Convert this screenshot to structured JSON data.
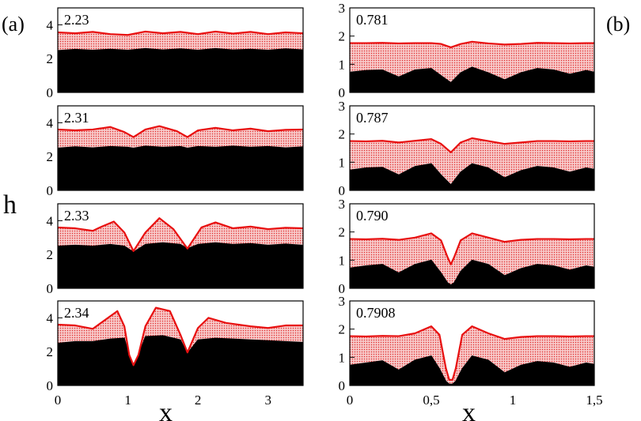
{
  "figure": {
    "panel_a_tag": "(a)",
    "panel_b_tag": "(b)",
    "ylabel": "h",
    "xlabel_a": "x",
    "xlabel_b": "x"
  },
  "colors": {
    "substrate": "#000000",
    "film_fill": "#f4b8b8",
    "film_edge": "#e81010",
    "frame": "#000000"
  },
  "chart_data": [
    {
      "type": "area",
      "column": "a",
      "param_label": "2.23",
      "xlim": [
        0,
        3.5
      ],
      "ylim": [
        0,
        5
      ],
      "yticks": [
        "0",
        "2",
        "4"
      ],
      "xticks": [],
      "substrate": {
        "x": [
          0,
          0.25,
          0.5,
          0.75,
          1.0,
          1.25,
          1.5,
          1.75,
          2.0,
          2.25,
          2.5,
          2.75,
          3.0,
          3.25,
          3.5
        ],
        "y": [
          2.48,
          2.55,
          2.5,
          2.56,
          2.5,
          2.6,
          2.52,
          2.58,
          2.5,
          2.6,
          2.52,
          2.56,
          2.5,
          2.58,
          2.52
        ]
      },
      "surface": {
        "x": [
          0,
          0.25,
          0.5,
          0.75,
          1.0,
          1.25,
          1.5,
          1.75,
          2.0,
          2.25,
          2.5,
          2.75,
          3.0,
          3.25,
          3.5
        ],
        "y": [
          3.55,
          3.5,
          3.58,
          3.45,
          3.4,
          3.6,
          3.5,
          3.58,
          3.45,
          3.6,
          3.48,
          3.58,
          3.45,
          3.55,
          3.5
        ]
      }
    },
    {
      "type": "area",
      "column": "a",
      "param_label": "2.31",
      "xlim": [
        0,
        3.5
      ],
      "ylim": [
        0,
        5
      ],
      "yticks": [
        "0",
        "2",
        "4"
      ],
      "xticks": [],
      "substrate": {
        "x": [
          0,
          0.25,
          0.5,
          0.75,
          1.0,
          1.08,
          1.25,
          1.5,
          1.75,
          1.85,
          2.0,
          2.25,
          2.5,
          2.75,
          3.0,
          3.25,
          3.5
        ],
        "y": [
          2.5,
          2.58,
          2.52,
          2.6,
          2.55,
          2.5,
          2.62,
          2.55,
          2.6,
          2.5,
          2.6,
          2.55,
          2.62,
          2.55,
          2.6,
          2.52,
          2.58
        ]
      },
      "surface": {
        "x": [
          0,
          0.25,
          0.5,
          0.75,
          0.95,
          1.08,
          1.25,
          1.45,
          1.7,
          1.85,
          2.0,
          2.25,
          2.5,
          2.75,
          3.0,
          3.25,
          3.5
        ],
        "y": [
          3.6,
          3.55,
          3.6,
          3.75,
          3.45,
          3.15,
          3.6,
          3.8,
          3.5,
          3.15,
          3.55,
          3.7,
          3.55,
          3.65,
          3.5,
          3.58,
          3.6
        ]
      }
    },
    {
      "type": "area",
      "column": "a",
      "param_label": "2.33",
      "xlim": [
        0,
        3.5
      ],
      "ylim": [
        0,
        5
      ],
      "yticks": [
        "0",
        "2",
        "4"
      ],
      "xticks": [],
      "substrate": {
        "x": [
          0,
          0.25,
          0.5,
          0.75,
          0.95,
          1.08,
          1.25,
          1.5,
          1.75,
          1.85,
          2.0,
          2.25,
          2.5,
          2.75,
          3.0,
          3.25,
          3.5
        ],
        "y": [
          2.5,
          2.55,
          2.5,
          2.6,
          2.5,
          2.15,
          2.6,
          2.7,
          2.6,
          2.35,
          2.6,
          2.7,
          2.6,
          2.65,
          2.55,
          2.62,
          2.55
        ]
      },
      "surface": {
        "x": [
          0,
          0.25,
          0.5,
          0.6,
          0.8,
          0.95,
          1.08,
          1.25,
          1.45,
          1.65,
          1.85,
          2.05,
          2.25,
          2.5,
          2.75,
          3.0,
          3.25,
          3.5
        ],
        "y": [
          3.6,
          3.55,
          3.4,
          3.6,
          3.95,
          3.3,
          2.2,
          3.3,
          4.15,
          3.5,
          2.35,
          3.6,
          3.9,
          3.55,
          3.65,
          3.5,
          3.58,
          3.55
        ]
      }
    },
    {
      "type": "area",
      "column": "a",
      "param_label": "2.34",
      "xlim": [
        0,
        3.5
      ],
      "ylim": [
        0,
        5
      ],
      "yticks": [
        "0",
        "2",
        "4"
      ],
      "xticks": [
        "0",
        "1",
        "2",
        "3"
      ],
      "xtick_values": [
        0,
        1,
        2,
        3
      ],
      "substrate": {
        "x": [
          0,
          0.25,
          0.5,
          0.75,
          0.95,
          1.02,
          1.08,
          1.15,
          1.25,
          1.5,
          1.75,
          1.85,
          2.0,
          2.25,
          2.5,
          2.75,
          3.0,
          3.25,
          3.5
        ],
        "y": [
          2.5,
          2.6,
          2.6,
          2.75,
          2.8,
          1.8,
          1.15,
          1.8,
          2.9,
          2.95,
          2.7,
          1.9,
          2.7,
          2.8,
          2.75,
          2.7,
          2.65,
          2.6,
          2.55
        ]
      },
      "surface": {
        "x": [
          0,
          0.25,
          0.5,
          0.65,
          0.85,
          0.95,
          1.02,
          1.08,
          1.15,
          1.25,
          1.4,
          1.6,
          1.75,
          1.85,
          2.0,
          2.15,
          2.4,
          2.75,
          3.0,
          3.25,
          3.5
        ],
        "y": [
          3.6,
          3.55,
          3.35,
          3.8,
          4.4,
          3.5,
          1.8,
          1.2,
          1.8,
          3.5,
          4.6,
          4.4,
          3.0,
          1.95,
          3.4,
          4.0,
          3.7,
          3.5,
          3.4,
          3.55,
          3.55
        ]
      }
    },
    {
      "type": "area",
      "column": "b",
      "param_label": "0.781",
      "xlim": [
        0,
        1.5
      ],
      "ylim": [
        0,
        3
      ],
      "yticks": [
        "0",
        "1",
        "2",
        "3"
      ],
      "xticks": [],
      "substrate": {
        "x": [
          0,
          0.1,
          0.2,
          0.3,
          0.4,
          0.5,
          0.56,
          0.62,
          0.68,
          0.75,
          0.85,
          0.95,
          1.05,
          1.15,
          1.25,
          1.35,
          1.45,
          1.5
        ],
        "y": [
          0.72,
          0.78,
          0.8,
          0.55,
          0.8,
          0.85,
          0.6,
          0.35,
          0.7,
          0.9,
          0.7,
          0.45,
          0.7,
          0.85,
          0.8,
          0.65,
          0.78,
          0.72
        ]
      },
      "surface": {
        "x": [
          0,
          0.1,
          0.2,
          0.3,
          0.4,
          0.5,
          0.56,
          0.62,
          0.68,
          0.75,
          0.85,
          0.95,
          1.05,
          1.15,
          1.25,
          1.35,
          1.45,
          1.5
        ],
        "y": [
          1.75,
          1.75,
          1.76,
          1.74,
          1.75,
          1.75,
          1.72,
          1.6,
          1.72,
          1.8,
          1.74,
          1.7,
          1.72,
          1.76,
          1.75,
          1.74,
          1.75,
          1.75
        ]
      }
    },
    {
      "type": "area",
      "column": "b",
      "param_label": "0.787",
      "xlim": [
        0,
        1.5
      ],
      "ylim": [
        0,
        3
      ],
      "yticks": [
        "0",
        "1",
        "2",
        "3"
      ],
      "xticks": [],
      "substrate": {
        "x": [
          0,
          0.1,
          0.2,
          0.3,
          0.4,
          0.5,
          0.56,
          0.62,
          0.68,
          0.75,
          0.85,
          0.95,
          1.05,
          1.15,
          1.25,
          1.35,
          1.45,
          1.5
        ],
        "y": [
          0.72,
          0.8,
          0.82,
          0.55,
          0.85,
          0.95,
          0.55,
          0.2,
          0.65,
          0.95,
          0.8,
          0.45,
          0.7,
          0.85,
          0.8,
          0.65,
          0.8,
          0.75
        ]
      },
      "surface": {
        "x": [
          0,
          0.1,
          0.2,
          0.3,
          0.4,
          0.5,
          0.56,
          0.62,
          0.68,
          0.75,
          0.85,
          0.95,
          1.05,
          1.15,
          1.25,
          1.35,
          1.45,
          1.5
        ],
        "y": [
          1.75,
          1.74,
          1.76,
          1.7,
          1.76,
          1.82,
          1.65,
          1.35,
          1.7,
          1.85,
          1.75,
          1.65,
          1.7,
          1.75,
          1.75,
          1.74,
          1.75,
          1.75
        ]
      }
    },
    {
      "type": "area",
      "column": "b",
      "param_label": "0.790",
      "xlim": [
        0,
        1.5
      ],
      "ylim": [
        0,
        3
      ],
      "yticks": [
        "0",
        "1",
        "2",
        "3"
      ],
      "xticks": [],
      "substrate": {
        "x": [
          0,
          0.1,
          0.2,
          0.3,
          0.4,
          0.5,
          0.56,
          0.6,
          0.62,
          0.64,
          0.68,
          0.75,
          0.85,
          0.95,
          1.05,
          1.15,
          1.25,
          1.35,
          1.45,
          1.5
        ],
        "y": [
          0.72,
          0.8,
          0.85,
          0.55,
          0.85,
          1.0,
          0.55,
          0.2,
          0.12,
          0.2,
          0.6,
          1.0,
          0.85,
          0.45,
          0.7,
          0.85,
          0.8,
          0.65,
          0.8,
          0.75
        ]
      },
      "surface": {
        "x": [
          0,
          0.1,
          0.2,
          0.3,
          0.4,
          0.5,
          0.56,
          0.6,
          0.62,
          0.64,
          0.68,
          0.75,
          0.85,
          0.95,
          1.05,
          1.15,
          1.25,
          1.35,
          1.45,
          1.5
        ],
        "y": [
          1.75,
          1.74,
          1.76,
          1.72,
          1.8,
          1.95,
          1.7,
          1.1,
          0.85,
          1.1,
          1.7,
          1.95,
          1.8,
          1.65,
          1.72,
          1.75,
          1.75,
          1.74,
          1.75,
          1.75
        ]
      }
    },
    {
      "type": "area",
      "column": "b",
      "param_label": "0.7908",
      "xlim": [
        0,
        1.5
      ],
      "ylim": [
        0,
        3
      ],
      "yticks": [
        "0",
        "1",
        "2",
        "3"
      ],
      "xticks": [
        "0",
        "0,5",
        "1",
        "1,5"
      ],
      "xtick_values": [
        0,
        0.5,
        1.0,
        1.5
      ],
      "substrate": {
        "x": [
          0,
          0.1,
          0.2,
          0.3,
          0.4,
          0.5,
          0.55,
          0.59,
          0.61,
          0.63,
          0.65,
          0.69,
          0.75,
          0.85,
          0.95,
          1.05,
          1.15,
          1.25,
          1.35,
          1.45,
          1.5
        ],
        "y": [
          0.72,
          0.8,
          0.88,
          0.55,
          0.9,
          1.05,
          0.6,
          0.15,
          0.05,
          0.05,
          0.15,
          0.6,
          1.05,
          0.9,
          0.45,
          0.72,
          0.85,
          0.8,
          0.65,
          0.8,
          0.75
        ]
      },
      "surface": {
        "x": [
          0,
          0.1,
          0.2,
          0.3,
          0.4,
          0.5,
          0.55,
          0.59,
          0.61,
          0.63,
          0.65,
          0.69,
          0.75,
          0.85,
          0.95,
          1.05,
          1.15,
          1.25,
          1.35,
          1.45,
          1.5
        ],
        "y": [
          1.75,
          1.74,
          1.76,
          1.75,
          1.85,
          2.1,
          1.8,
          0.6,
          0.2,
          0.2,
          0.6,
          1.8,
          2.1,
          1.85,
          1.65,
          1.72,
          1.75,
          1.75,
          1.74,
          1.75,
          1.75
        ]
      }
    }
  ]
}
